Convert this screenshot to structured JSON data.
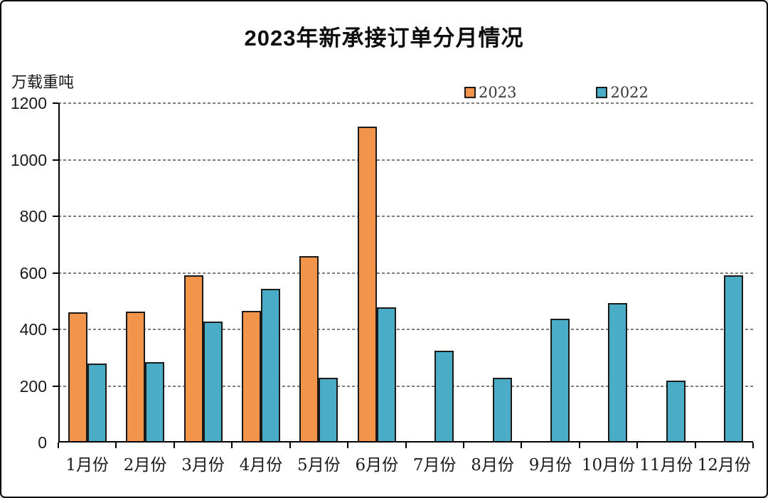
{
  "page": {
    "title": "2023年新承接订单分月情况",
    "unit_label": "万载重吨"
  },
  "chart_data": {
    "type": "bar",
    "title": "2023年新承接订单分月情况",
    "ylabel": "万载重吨",
    "xlabel": "",
    "categories": [
      "1月份",
      "2月份",
      "3月份",
      "4月份",
      "5月份",
      "6月份",
      "7月份",
      "8月份",
      "9月份",
      "10月份",
      "11月份",
      "12月份"
    ],
    "series": [
      {
        "name": "2023",
        "color": "#F2954B",
        "values": [
          460,
          464,
          591,
          466,
          658,
          1117,
          null,
          null,
          null,
          null,
          null,
          null
        ]
      },
      {
        "name": "2022",
        "color": "#4AACC6",
        "values": [
          280,
          284,
          428,
          544,
          229,
          477,
          324,
          230,
          438,
          494,
          219,
          591
        ]
      }
    ],
    "ylim": [
      0,
      1200
    ],
    "yticks": [
      0,
      200,
      400,
      600,
      800,
      1000,
      1200
    ],
    "grid": "horizontal-dashed",
    "legend_position": "top-inside",
    "colors": {
      "axis": "#000000",
      "bar_border": "#1a1a1a",
      "gridline": "#7d7d7d"
    }
  }
}
